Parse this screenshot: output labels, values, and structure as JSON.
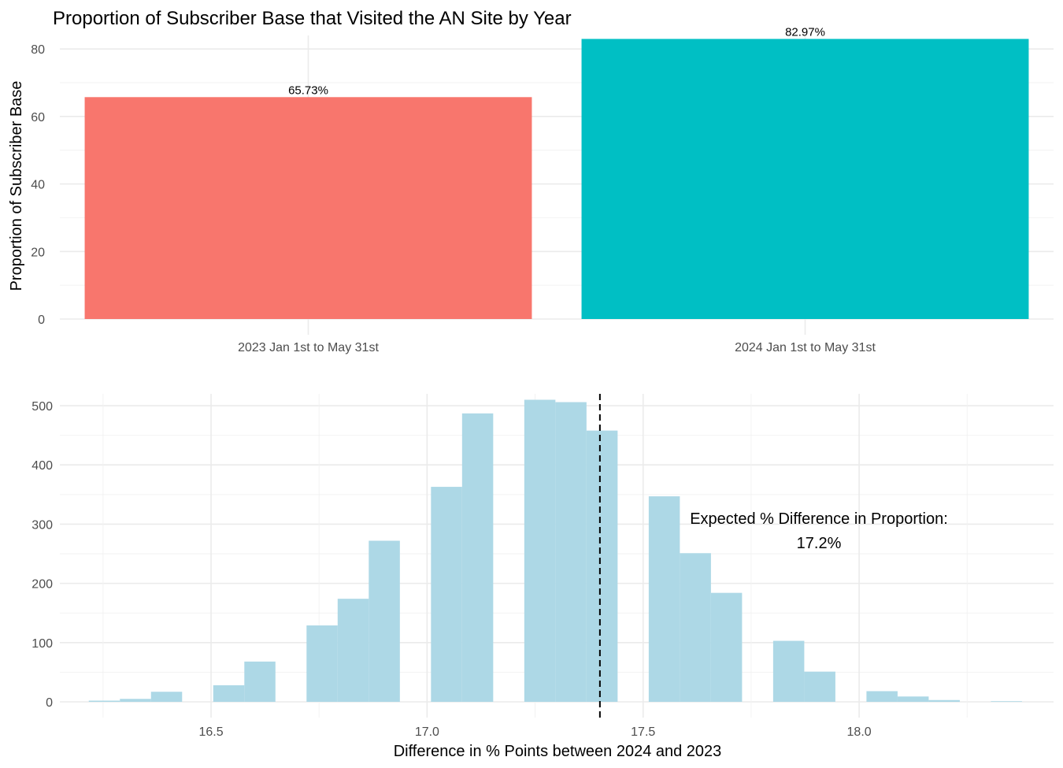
{
  "chart_data": [
    {
      "type": "bar",
      "title": "Proportion of Subscriber Base that Visited the AN Site by Year",
      "xlabel": "",
      "ylabel": "Proportion of Subscriber Base",
      "categories": [
        "2023 Jan 1st to May 31st",
        "2024 Jan 1st to May 31st"
      ],
      "values": [
        65.73,
        82.97
      ],
      "data_labels": [
        "65.73%",
        "82.97%"
      ],
      "colors": [
        "#F8766D",
        "#00BFC4"
      ],
      "ylim": [
        0,
        84
      ],
      "yticks": [
        0,
        20,
        40,
        60,
        80
      ],
      "grid": true
    },
    {
      "type": "bar",
      "subtype": "histogram",
      "title": "",
      "xlabel": "Difference in % Points between 2024 and 2023",
      "ylabel": "",
      "bin_width": 0.072,
      "bins": [
        {
          "x": 16.253,
          "count": 2
        },
        {
          "x": 16.325,
          "count": 5
        },
        {
          "x": 16.397,
          "count": 17
        },
        {
          "x": 16.541,
          "count": 28
        },
        {
          "x": 16.613,
          "count": 68
        },
        {
          "x": 16.757,
          "count": 129
        },
        {
          "x": 16.829,
          "count": 174
        },
        {
          "x": 16.901,
          "count": 272
        },
        {
          "x": 17.045,
          "count": 363
        },
        {
          "x": 17.117,
          "count": 487
        },
        {
          "x": 17.261,
          "count": 510
        },
        {
          "x": 17.333,
          "count": 506
        },
        {
          "x": 17.405,
          "count": 458
        },
        {
          "x": 17.549,
          "count": 347
        },
        {
          "x": 17.621,
          "count": 251
        },
        {
          "x": 17.693,
          "count": 184
        },
        {
          "x": 17.837,
          "count": 103
        },
        {
          "x": 17.909,
          "count": 51
        },
        {
          "x": 18.053,
          "count": 18
        },
        {
          "x": 18.125,
          "count": 9
        },
        {
          "x": 18.197,
          "count": 3
        },
        {
          "x": 18.341,
          "count": 1
        }
      ],
      "color": "#ADD8E6",
      "xlim": [
        16.15,
        18.45
      ],
      "ylim": [
        0,
        520
      ],
      "xticks": [
        "16.5",
        "17.0",
        "17.5",
        "18.0"
      ],
      "yticks": [
        0,
        100,
        200,
        300,
        400,
        500
      ],
      "reference_line": {
        "x": 17.4,
        "style": "dashed",
        "color": "#000000"
      },
      "annotation": {
        "line1": "Expected % Difference in Proportion:",
        "line2": "17.2%"
      },
      "grid": true
    }
  ]
}
